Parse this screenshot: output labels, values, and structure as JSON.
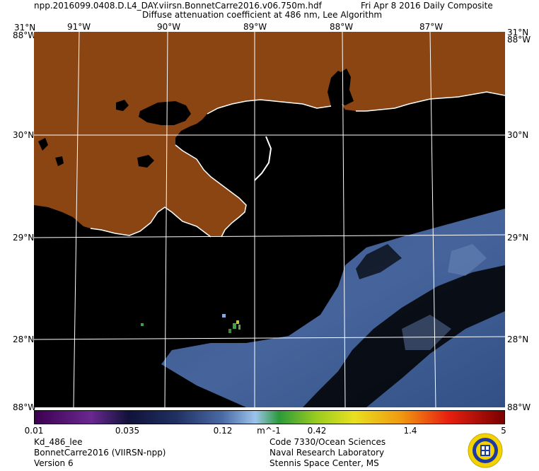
{
  "header": {
    "filename": "npp.2016099.0408.D.L4_DAY.viirsn.BonnetCarre2016.v06.750m.hdf",
    "date": "Fri Apr  8 2016 Daily Composite",
    "product": "Diffuse attenuation coefficient at 486 nm, Lee Algorithm"
  },
  "map": {
    "lon_labels": [
      "91°W",
      "90°W",
      "89°W",
      "88°W",
      "87°W"
    ],
    "lat_labels": [
      "30°N",
      "29°N",
      "28°N"
    ],
    "corner_top_left": "31°N",
    "corner_top_left_under": "88°W",
    "corner_top_right": "31°N",
    "corner_top_right_under": "88°W",
    "corner_bottom_left": "88°W",
    "corner_bottom_right": "88°W",
    "land_color": "#8b4513",
    "water_color": "#000000",
    "grid_color": "#ffffff"
  },
  "colorbar": {
    "labels": [
      "0.01",
      "0.035",
      "0.12",
      "0.42",
      "1.4",
      "5"
    ],
    "unit": "m^-1"
  },
  "footer": {
    "left_line1": "Kd_486_lee",
    "left_line2": "BonnetCarre2016 (VIIRSN-npp)",
    "left_line3": "Version 6",
    "right_line1": "Code 7330/Ocean Sciences",
    "right_line2": "Naval Research Laboratory",
    "right_line3": "Stennis Space Center, MS"
  },
  "logo": {
    "name": "nrl-seal-icon"
  }
}
